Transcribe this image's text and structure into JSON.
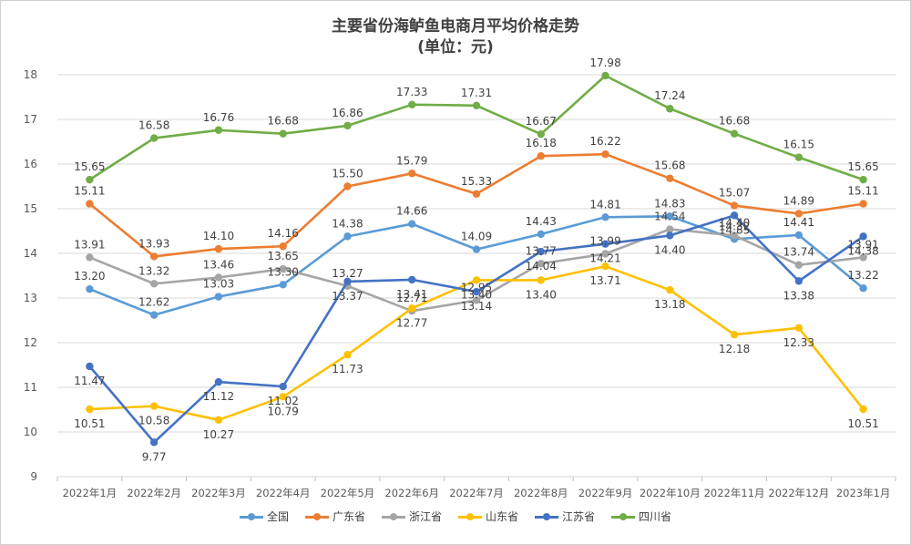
{
  "title_line1": "主要省份海鲈鱼电商月平均价格走势",
  "title_line2": "(单位：元)",
  "chart_data": {
    "type": "line",
    "categories": [
      "2022年1月",
      "2022年2月",
      "2022年3月",
      "2022年4月",
      "2022年5月",
      "2022年6月",
      "2022年7月",
      "2022年8月",
      "2022年9月",
      "2022年10月",
      "2022年11月",
      "2022年12月",
      "2023年1月"
    ],
    "ylim": [
      9,
      18
    ],
    "yticks": [
      9,
      10,
      11,
      12,
      13,
      14,
      15,
      16,
      17,
      18
    ],
    "grid": true,
    "legend_position": "bottom",
    "series": [
      {
        "name": "全国",
        "color": "#5b9bd5",
        "values": [
          13.2,
          12.62,
          13.03,
          13.3,
          14.38,
          14.66,
          14.09,
          14.43,
          14.81,
          14.83,
          14.32,
          14.41,
          13.22
        ]
      },
      {
        "name": "广东省",
        "color": "#ed7d31",
        "values": [
          15.11,
          13.93,
          14.1,
          14.16,
          15.5,
          15.79,
          15.33,
          16.18,
          16.22,
          15.68,
          15.07,
          14.89,
          15.11
        ]
      },
      {
        "name": "浙江省",
        "color": "#a5a5a5",
        "values": [
          13.91,
          13.32,
          13.46,
          13.65,
          13.27,
          12.71,
          12.95,
          13.77,
          13.99,
          14.54,
          14.4,
          13.74,
          13.91
        ]
      },
      {
        "name": "山东省",
        "color": "#ffc000",
        "values": [
          10.51,
          10.58,
          10.27,
          10.79,
          11.73,
          12.77,
          13.4,
          13.4,
          13.71,
          13.18,
          12.18,
          12.33,
          10.51
        ]
      },
      {
        "name": "江苏省",
        "color": "#4472c4",
        "values": [
          11.47,
          9.77,
          11.12,
          11.02,
          13.37,
          13.41,
          13.14,
          14.04,
          14.21,
          14.4,
          14.85,
          13.38,
          14.38
        ]
      },
      {
        "name": "四川省",
        "color": "#70ad47",
        "values": [
          15.65,
          16.58,
          16.76,
          16.68,
          16.86,
          17.33,
          17.31,
          16.67,
          17.98,
          17.24,
          16.68,
          16.15,
          15.65
        ]
      }
    ]
  }
}
